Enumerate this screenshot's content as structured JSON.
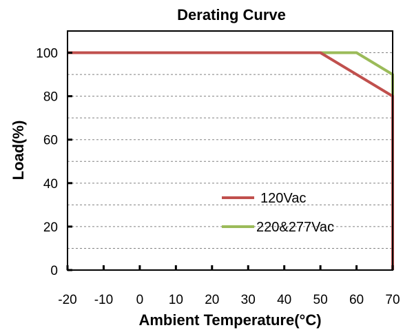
{
  "chart_data": {
    "type": "line",
    "title": "Derating Curve",
    "xlabel": "Ambient Temperature(°C)",
    "ylabel": "Load(%)",
    "xlim": [
      -20,
      70
    ],
    "ylim": [
      0,
      110
    ],
    "xticks": [
      "-20",
      "-10",
      "0",
      "10",
      "20",
      "30",
      "40",
      "50",
      "60",
      "70"
    ],
    "yticks": [
      "0",
      "20",
      "40",
      "60",
      "80",
      "100"
    ],
    "grid": "horizontal-dashed",
    "legend_position": "bottom-right",
    "series": [
      {
        "name": "120Vac",
        "color": "#c0504d",
        "points": [
          [
            -20,
            100
          ],
          [
            50,
            100
          ],
          [
            70,
            80
          ],
          [
            70,
            0
          ]
        ]
      },
      {
        "name": "220&277Vac",
        "color": "#9bbb59",
        "points": [
          [
            -20,
            100
          ],
          [
            60,
            100
          ],
          [
            70,
            90
          ],
          [
            70,
            0
          ]
        ]
      }
    ]
  }
}
